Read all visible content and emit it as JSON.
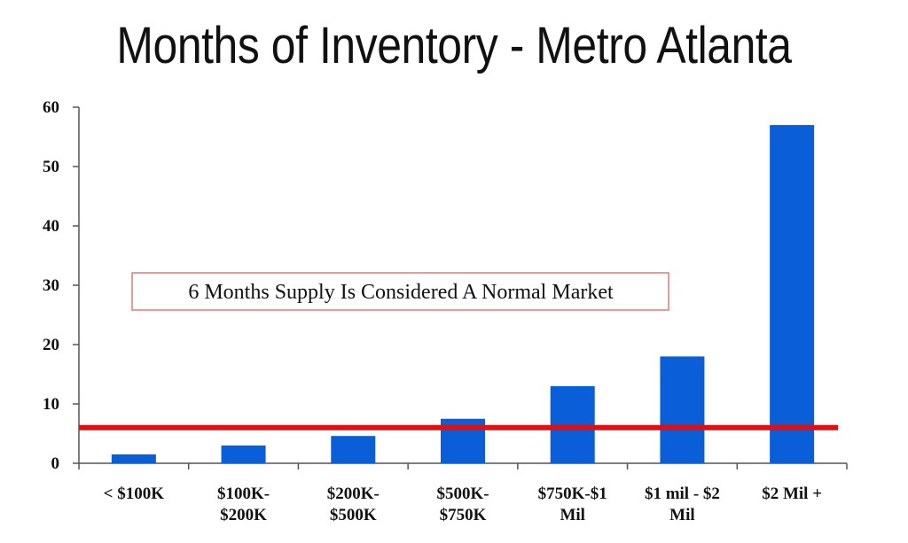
{
  "chart_data": {
    "type": "bar",
    "title": "Months of Inventory - Metro Atlanta",
    "categories": [
      [
        "< $100K"
      ],
      [
        "$100K-",
        "$200K"
      ],
      [
        "$200K-",
        "$500K"
      ],
      [
        "$500K-",
        "$750K"
      ],
      [
        "$750K-$1",
        "Mil"
      ],
      [
        "$1 mil - $2",
        "Mil"
      ],
      [
        "$2 Mil +"
      ]
    ],
    "values": [
      1.5,
      3,
      4.6,
      7.5,
      13,
      18,
      57
    ],
    "ylim": [
      0,
      60
    ],
    "yticks": [
      0,
      10,
      20,
      30,
      40,
      50,
      60
    ],
    "xlabel": "",
    "ylabel": "",
    "grid": false,
    "reference_line": {
      "value": 6
    },
    "annotation": "6 Months Supply Is Considered A Normal Market",
    "colors": {
      "bar": "#0a5ed7",
      "reference_line": "#dd1111",
      "annotation_border": "#e07a7a"
    }
  }
}
